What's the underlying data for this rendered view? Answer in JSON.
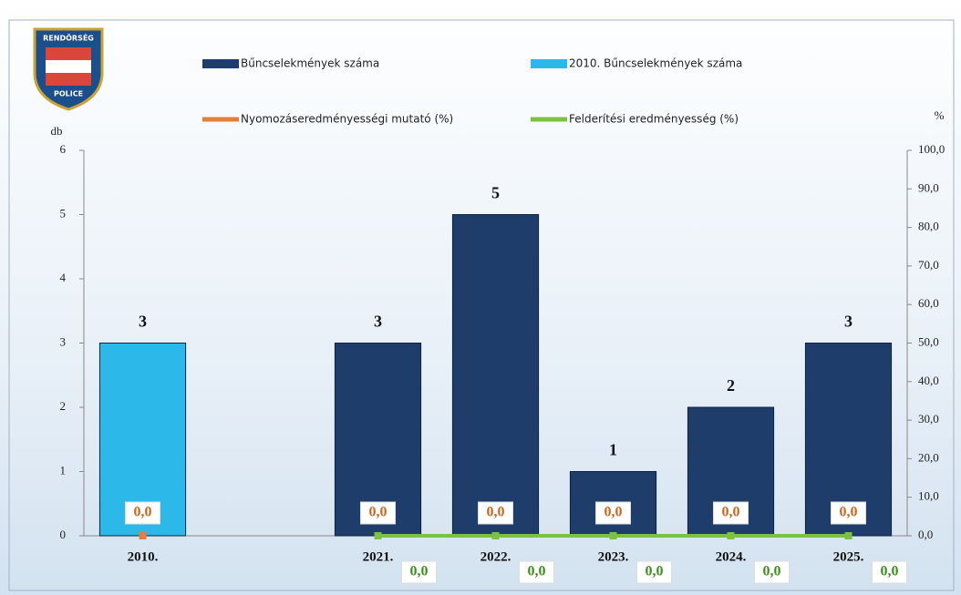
{
  "chart_data": {
    "type": "bar",
    "logo": {
      "top": "RENDŐRSÉG",
      "bottom": "POLICE"
    },
    "y_label": "db",
    "y2_label": "%",
    "categories": [
      "2010.",
      null,
      "2021.",
      "2022.",
      "2023.",
      "2024.",
      "2025."
    ],
    "series": [
      {
        "name": "Bűncselekmények száma",
        "type": "bar",
        "color": "#1f3d6b",
        "values": [
          null,
          null,
          3,
          5,
          1,
          2,
          3
        ]
      },
      {
        "name": "2010. Bűncselekmények száma",
        "type": "bar",
        "color": "#2cb9ea",
        "values": [
          3,
          null,
          null,
          null,
          null,
          null,
          null
        ]
      },
      {
        "name": "Nyomozáseredményességi mutató (%)",
        "type": "line",
        "axis": "y2",
        "color": "#e0803a",
        "values": [
          0,
          null,
          0,
          0,
          0,
          0,
          0
        ],
        "value_labels": [
          "0,0",
          null,
          "0,0",
          "0,0",
          "0,0",
          "0,0",
          "0,0"
        ]
      },
      {
        "name": "Felderítési eredményesség (%)",
        "type": "line",
        "axis": "y2",
        "color": "#7cc242",
        "values": [
          null,
          null,
          0,
          0,
          0,
          0,
          0
        ],
        "value_labels": [
          null,
          null,
          "0,0",
          "0,0",
          "0,0",
          "0,0",
          "0,0"
        ]
      }
    ],
    "ylim": [
      0,
      6
    ],
    "yticks": [
      0,
      1,
      2,
      3,
      4,
      5,
      6
    ],
    "y2lim": [
      0,
      100
    ],
    "y2ticks": [
      {
        "value": 0,
        "label": "0,0"
      },
      {
        "value": 10,
        "label": "10,0"
      },
      {
        "value": 20,
        "label": "20,0"
      },
      {
        "value": 30,
        "label": "30,0"
      },
      {
        "value": 40,
        "label": "40,0"
      },
      {
        "value": 50,
        "label": "50,0"
      },
      {
        "value": 60,
        "label": "60,0"
      },
      {
        "value": 70,
        "label": "70,0"
      },
      {
        "value": 80,
        "label": "80,0"
      },
      {
        "value": 90,
        "label": "90,0"
      },
      {
        "value": 100,
        "label": "100,0"
      }
    ]
  }
}
